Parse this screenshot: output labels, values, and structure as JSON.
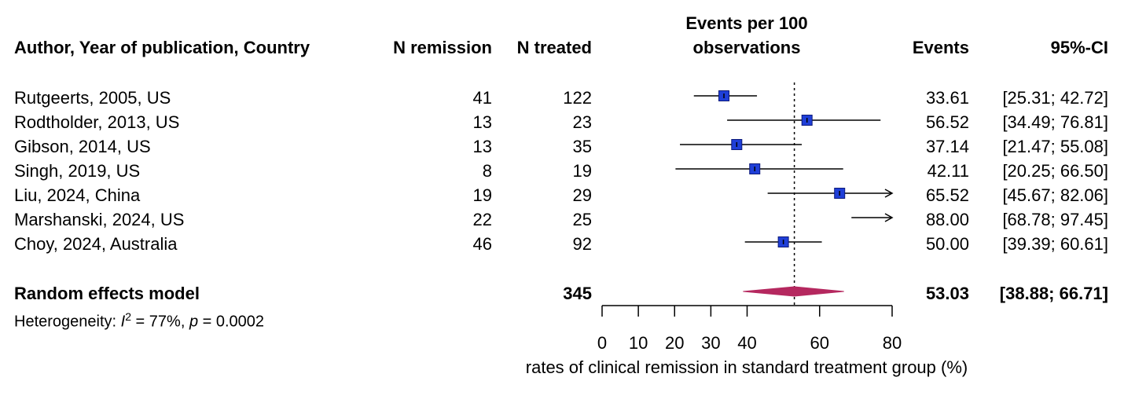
{
  "headers": {
    "study": "Author, Year of publication, Country",
    "n_remission": "N remission",
    "n_treated": "N treated",
    "events_per_100_line1": "Events per 100",
    "events_per_100_line2": "observations",
    "events": "Events",
    "ci": "95%-CI"
  },
  "rows": [
    {
      "study": "Rutgeerts, 2005, US",
      "n_remission": "41",
      "n_treated": "122",
      "events": "33.61",
      "ci": "[25.31; 42.72]"
    },
    {
      "study": "Rodtholder, 2013, US",
      "n_remission": "13",
      "n_treated": "23",
      "events": "56.52",
      "ci": "[34.49; 76.81]"
    },
    {
      "study": "Gibson, 2014, US",
      "n_remission": "13",
      "n_treated": "35",
      "events": "37.14",
      "ci": "[21.47; 55.08]"
    },
    {
      "study": "Singh, 2019, US",
      "n_remission": "8",
      "n_treated": "19",
      "events": "42.11",
      "ci": "[20.25; 66.50]"
    },
    {
      "study": "Liu, 2024, China",
      "n_remission": "19",
      "n_treated": "29",
      "events": "65.52",
      "ci": "[45.67; 82.06]"
    },
    {
      "study": "Marshanski, 2024, US",
      "n_remission": "22",
      "n_treated": "25",
      "events": "88.00",
      "ci": "[68.78; 97.45]"
    },
    {
      "study": "Choy, 2024, Australia",
      "n_remission": "46",
      "n_treated": "92",
      "events": "50.00",
      "ci": "[39.39; 60.61]"
    }
  ],
  "pooled": {
    "label": "Random effects model",
    "n_treated": "345",
    "events": "53.03",
    "ci": "[38.88; 66.71]"
  },
  "heterogeneity": {
    "prefix": "Heterogeneity: ",
    "i_symbol": "I",
    "i_sup": "2",
    "i_value": " = 77%, ",
    "p_symbol": "p",
    "p_value": " = 0.0002"
  },
  "colors": {
    "square_fill": "#1f3fd8",
    "square_stroke": "#0d1a7a",
    "diamond": "#b5285f",
    "line": "#000000"
  },
  "chart_data": {
    "type": "forest",
    "xlabel": "rates of clinical remission in standard treatment group (%)",
    "xlim": [
      0,
      80
    ],
    "ticks": [
      0,
      10,
      20,
      30,
      40,
      60,
      80
    ],
    "reference_line": 53.03,
    "series": [
      {
        "name": "Rutgeerts, 2005, US",
        "estimate": 33.61,
        "lower": 25.31,
        "upper": 42.72
      },
      {
        "name": "Rodtholder, 2013, US",
        "estimate": 56.52,
        "lower": 34.49,
        "upper": 76.81
      },
      {
        "name": "Gibson, 2014, US",
        "estimate": 37.14,
        "lower": 21.47,
        "upper": 55.08
      },
      {
        "name": "Singh, 2019, US",
        "estimate": 42.11,
        "lower": 20.25,
        "upper": 66.5
      },
      {
        "name": "Liu, 2024, China",
        "estimate": 65.52,
        "lower": 45.67,
        "upper": 82.06
      },
      {
        "name": "Marshanski, 2024, US",
        "estimate": 88.0,
        "lower": 68.78,
        "upper": 97.45
      },
      {
        "name": "Choy, 2024, Australia",
        "estimate": 50.0,
        "lower": 39.39,
        "upper": 60.61
      }
    ],
    "pooled": {
      "name": "Random effects model",
      "estimate": 53.03,
      "lower": 38.88,
      "upper": 66.71
    }
  }
}
